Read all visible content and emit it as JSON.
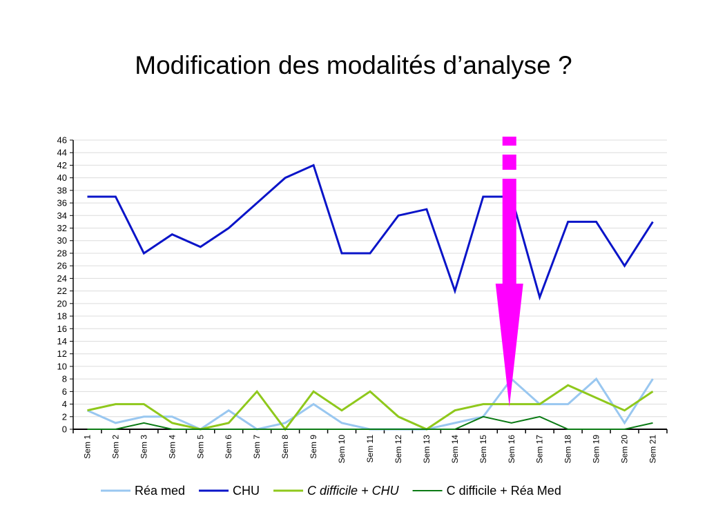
{
  "title": "Modification des modalités d’analyse ?",
  "chart_data": {
    "type": "line",
    "categories": [
      "Sem 1",
      "Sem 2",
      "Sem 3",
      "Sem 4",
      "Sem 5",
      "Sem 6",
      "Sem 7",
      "Sem 8",
      "Sem 9",
      "Sem 10",
      "Sem 11",
      "Sem 12",
      "Sem 13",
      "Sem 14",
      "Sem 15",
      "Sem 16",
      "Sem 17",
      "Sem 18",
      "Sem 19",
      "Sem 20",
      "Sem 21"
    ],
    "ylim": [
      0,
      46
    ],
    "yticks": [
      0,
      2,
      4,
      6,
      8,
      10,
      12,
      14,
      16,
      18,
      20,
      22,
      24,
      26,
      28,
      30,
      32,
      34,
      36,
      38,
      40,
      42,
      44,
      46
    ],
    "grid": true,
    "legend_position": "bottom",
    "series": [
      {
        "name": "Réa med",
        "color": "#99c7f0",
        "width": 3,
        "italic": false,
        "values": [
          3,
          1,
          2,
          2,
          0,
          3,
          0,
          1,
          4,
          1,
          0,
          0,
          0,
          1,
          2,
          8,
          4,
          4,
          8,
          1,
          8
        ]
      },
      {
        "name": "CHU",
        "color": "#0a14c8",
        "width": 3,
        "italic": false,
        "values": [
          37,
          37,
          28,
          31,
          29,
          32,
          36,
          40,
          42,
          28,
          28,
          34,
          35,
          22,
          37,
          37,
          21,
          33,
          33,
          26,
          33
        ]
      },
      {
        "name": "C difficile + CHU",
        "color": "#8fc81c",
        "width": 3,
        "italic": true,
        "values": [
          3,
          4,
          4,
          1,
          0,
          1,
          6,
          0,
          6,
          3,
          6,
          2,
          0,
          3,
          4,
          4,
          4,
          7,
          5,
          3,
          6
        ]
      },
      {
        "name": "C difficile + Réa Med",
        "color": "#0a7a14",
        "width": 2,
        "italic": false,
        "values": [
          0,
          0,
          1,
          0,
          0,
          0,
          0,
          0,
          0,
          0,
          0,
          0,
          0,
          0,
          2,
          1,
          2,
          0,
          0,
          0,
          1
        ]
      }
    ],
    "annotation": {
      "type": "arrow",
      "color": "#ff00ff",
      "at_category": "Sem 16",
      "points_to_value": 4
    }
  }
}
